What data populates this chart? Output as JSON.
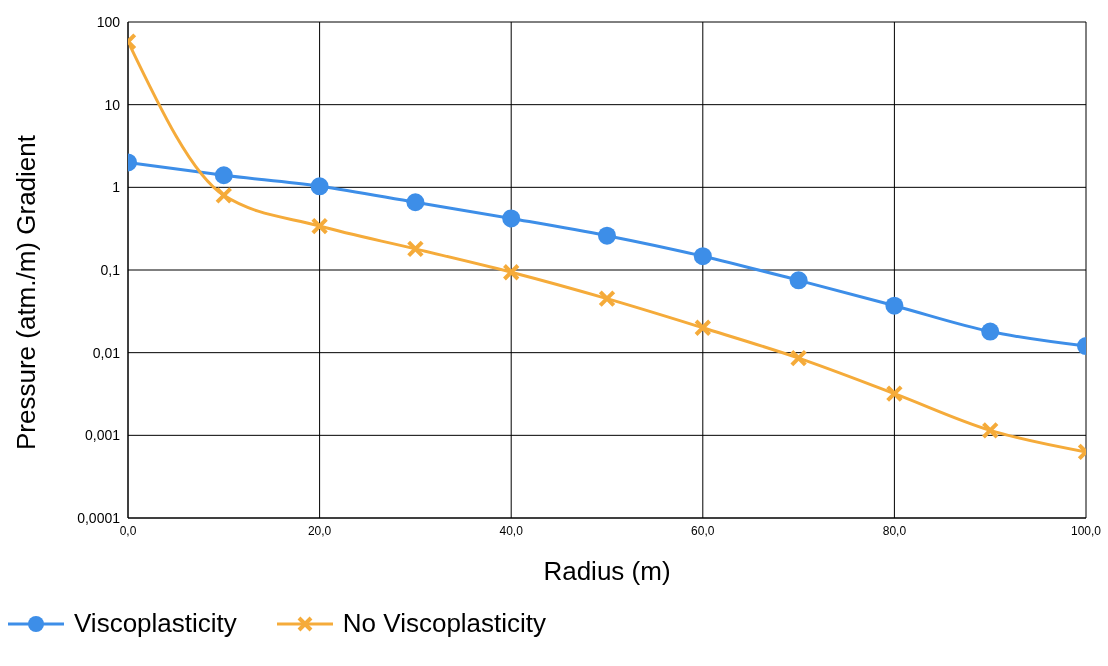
{
  "chart_data": {
    "type": "line",
    "xlabel": "Radius (m)",
    "ylabel": "Pressure (atm./m) Gradient",
    "x": [
      0,
      10,
      20,
      30,
      40,
      50,
      60,
      70,
      80,
      90,
      100
    ],
    "series": [
      {
        "name": "Viscoplasticity",
        "color": "#3d8ee8",
        "marker": "circle",
        "values": [
          2.0,
          1.4,
          1.03,
          0.66,
          0.42,
          0.26,
          0.147,
          0.075,
          0.037,
          0.018,
          0.012
        ]
      },
      {
        "name": "No Viscoplasticity",
        "color": "#f5ab3a",
        "marker": "cross",
        "values": [
          58,
          0.8,
          0.34,
          0.18,
          0.094,
          0.045,
          0.02,
          0.0086,
          0.0032,
          0.00115,
          0.00063
        ]
      }
    ],
    "xlim": [
      0,
      100
    ],
    "xticks": [
      {
        "value": 0,
        "label": "0,0"
      },
      {
        "value": 20,
        "label": "20,0"
      },
      {
        "value": 40,
        "label": "40,0"
      },
      {
        "value": 60,
        "label": "60,0"
      },
      {
        "value": 80,
        "label": "80,0"
      },
      {
        "value": 100,
        "label": "100,0"
      }
    ],
    "ylim": [
      0.0001,
      100
    ],
    "yticks": [
      {
        "value": 0.0001,
        "label": "0,0001"
      },
      {
        "value": 0.001,
        "label": "0,001"
      },
      {
        "value": 0.01,
        "label": "0,01"
      },
      {
        "value": 0.1,
        "label": "0,1"
      },
      {
        "value": 1,
        "label": "1"
      },
      {
        "value": 10,
        "label": "10"
      },
      {
        "value": 100,
        "label": "100"
      }
    ],
    "log": "y",
    "grid": true,
    "legend": "bottom left",
    "line_style": "solid"
  }
}
